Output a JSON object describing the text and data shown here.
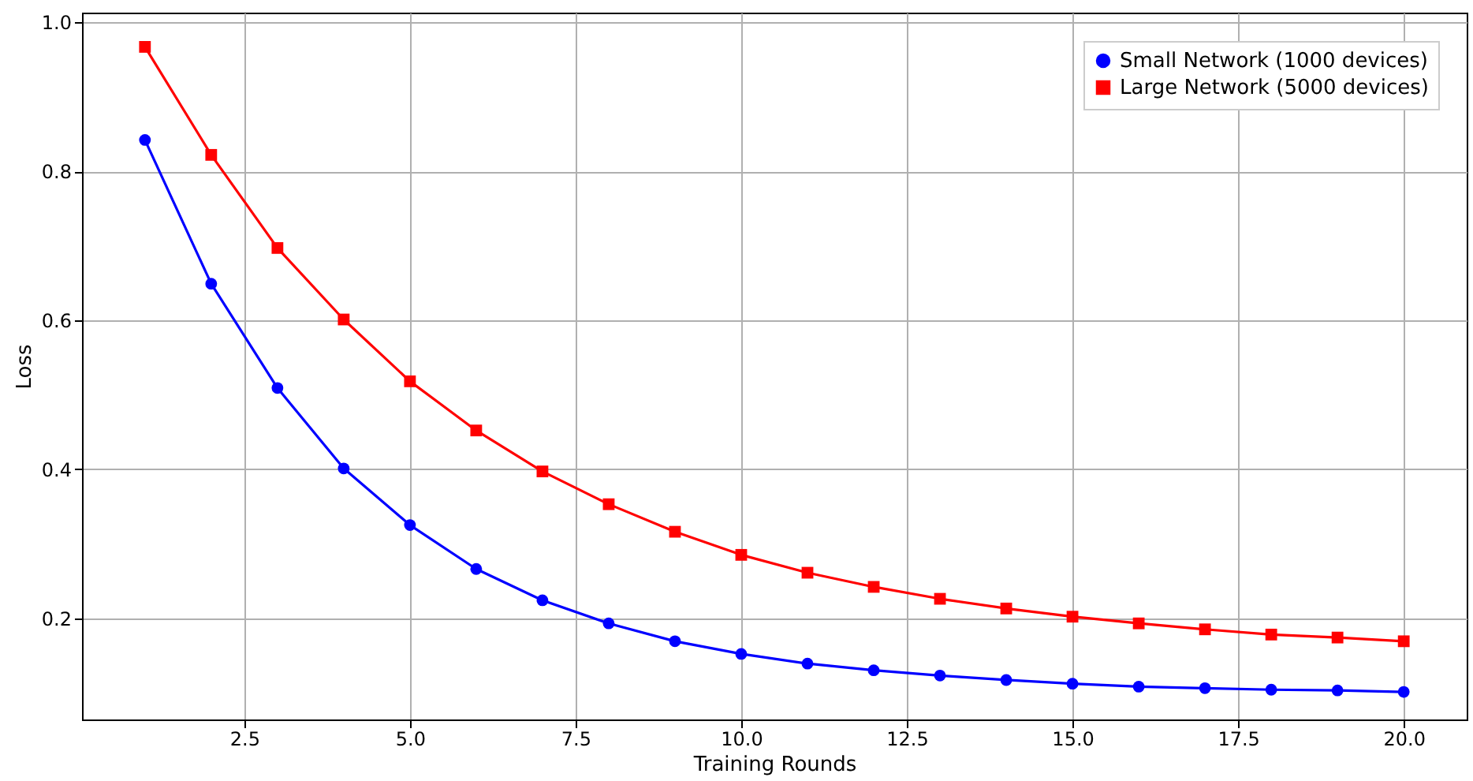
{
  "chart_data": {
    "type": "line",
    "xlabel": "Training Rounds",
    "ylabel": "Loss",
    "x": [
      1,
      2,
      3,
      4,
      5,
      6,
      7,
      8,
      9,
      10,
      11,
      12,
      13,
      14,
      15,
      16,
      17,
      18,
      19,
      20
    ],
    "series": [
      {
        "name": "Small Network (1000 devices)",
        "color": "#0000ff",
        "marker": "circle",
        "values": [
          0.842,
          0.649,
          0.509,
          0.401,
          0.325,
          0.266,
          0.224,
          0.193,
          0.169,
          0.152,
          0.139,
          0.13,
          0.123,
          0.117,
          0.112,
          0.108,
          0.106,
          0.104,
          0.103,
          0.101
        ]
      },
      {
        "name": "Large Network (5000 devices)",
        "color": "#ff0000",
        "marker": "square",
        "values": [
          0.967,
          0.822,
          0.697,
          0.601,
          0.518,
          0.452,
          0.397,
          0.353,
          0.316,
          0.285,
          0.261,
          0.242,
          0.226,
          0.213,
          0.202,
          0.193,
          0.185,
          0.178,
          0.174,
          0.169
        ]
      }
    ],
    "xlim": [
      0.05,
      20.95
    ],
    "ylim": [
      0.064,
      1.013
    ],
    "xticks": [
      2.5,
      {
        "value": 5,
        "label": "5.0"
      },
      7.5,
      {
        "value": 10,
        "label": "10.0"
      },
      12.5,
      {
        "value": 15,
        "label": "15.0"
      },
      17.5,
      {
        "value": 20,
        "label": "20.0"
      }
    ],
    "yticks": [
      0.2,
      0.4,
      0.6,
      0.8,
      {
        "value": 1,
        "label": "1.0"
      }
    ],
    "grid": true,
    "legend": "top right",
    "line_style": "solid"
  }
}
